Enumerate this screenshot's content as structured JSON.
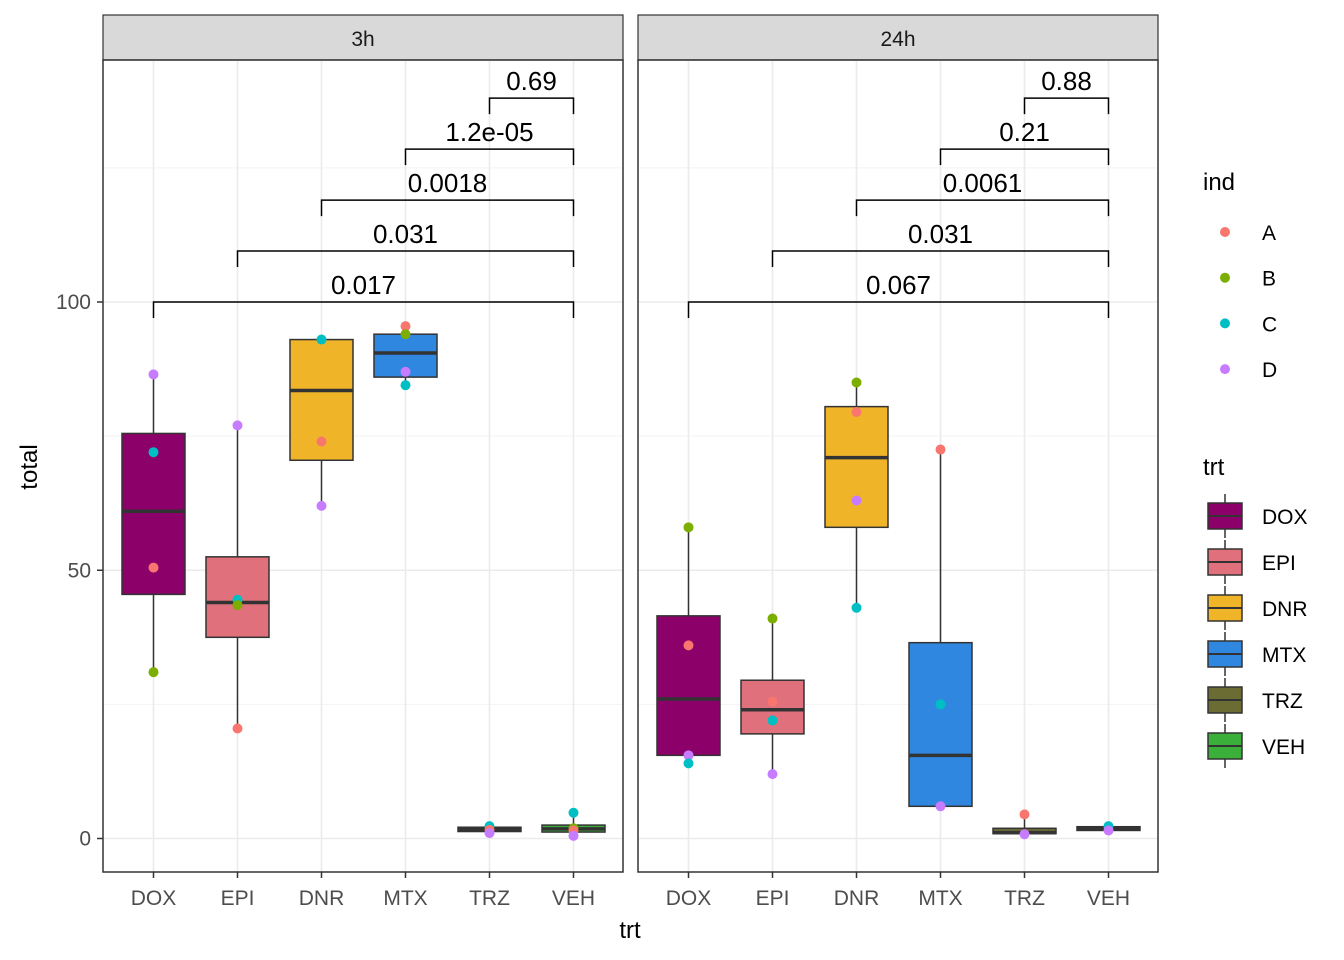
{
  "chart_data": {
    "type": "boxplot",
    "xlabel": "trt",
    "ylabel": "total",
    "ylim": [
      -6,
      145
    ],
    "yticks": [
      0,
      50,
      100
    ],
    "grid": true,
    "legend_position": "right",
    "categories": [
      "DOX",
      "EPI",
      "DNR",
      "MTX",
      "TRZ",
      "VEH"
    ],
    "colors": {
      "trt": {
        "DOX": "#8b0069",
        "EPI": "#e0707b",
        "DNR": "#f0b429",
        "MTX": "#2f87e0",
        "TRZ": "#6b6b34",
        "VEH": "#3aaf3a"
      },
      "ind": {
        "A": "#f8766d",
        "B": "#7cae00",
        "C": "#00bfc4",
        "D": "#c77cff"
      }
    },
    "legends": [
      {
        "title": "ind",
        "kind": "point",
        "items": [
          "A",
          "B",
          "C",
          "D"
        ]
      },
      {
        "title": "trt",
        "kind": "box",
        "items": [
          "DOX",
          "EPI",
          "DNR",
          "MTX",
          "TRZ",
          "VEH"
        ]
      }
    ],
    "panels": [
      {
        "label": "3h",
        "boxes": [
          {
            "trt": "DOX",
            "min": 31,
            "q1": 45.5,
            "median": 61,
            "q3": 75.5,
            "max": 86.5
          },
          {
            "trt": "EPI",
            "min": 20.5,
            "q1": 37.5,
            "median": 44,
            "q3": 52.5,
            "max": 77
          },
          {
            "trt": "DNR",
            "min": 62,
            "q1": 70.5,
            "median": 83.5,
            "q3": 93,
            "max": 93
          },
          {
            "trt": "MTX",
            "min": 84.5,
            "q1": 86,
            "median": 90.5,
            "q3": 94,
            "max": 95.5
          },
          {
            "trt": "TRZ",
            "min": 1,
            "q1": 1.3,
            "median": 1.7,
            "q3": 2.1,
            "max": 2.3
          },
          {
            "trt": "VEH",
            "min": 0.5,
            "q1": 1.2,
            "median": 1.8,
            "q3": 2.5,
            "max": 4.8
          }
        ],
        "points": [
          {
            "trt": "DOX",
            "ind": "D",
            "y": 86.5
          },
          {
            "trt": "DOX",
            "ind": "C",
            "y": 72
          },
          {
            "trt": "DOX",
            "ind": "A",
            "y": 50.5
          },
          {
            "trt": "DOX",
            "ind": "B",
            "y": 31
          },
          {
            "trt": "EPI",
            "ind": "D",
            "y": 77
          },
          {
            "trt": "EPI",
            "ind": "C",
            "y": 44.5
          },
          {
            "trt": "EPI",
            "ind": "B",
            "y": 43.5
          },
          {
            "trt": "EPI",
            "ind": "A",
            "y": 20.5
          },
          {
            "trt": "DNR",
            "ind": "C",
            "y": 93
          },
          {
            "trt": "DNR",
            "ind": "A",
            "y": 74
          },
          {
            "trt": "DNR",
            "ind": "D",
            "y": 62
          },
          {
            "trt": "MTX",
            "ind": "A",
            "y": 95.5
          },
          {
            "trt": "MTX",
            "ind": "B",
            "y": 94
          },
          {
            "trt": "MTX",
            "ind": "D",
            "y": 87
          },
          {
            "trt": "MTX",
            "ind": "C",
            "y": 84.5
          },
          {
            "trt": "TRZ",
            "ind": "C",
            "y": 2.3
          },
          {
            "trt": "TRZ",
            "ind": "A",
            "y": 1.6
          },
          {
            "trt": "TRZ",
            "ind": "D",
            "y": 1
          },
          {
            "trt": "VEH",
            "ind": "C",
            "y": 4.8
          },
          {
            "trt": "VEH",
            "ind": "B",
            "y": 1.9
          },
          {
            "trt": "VEH",
            "ind": "A",
            "y": 1.5
          },
          {
            "trt": "VEH",
            "ind": "D",
            "y": 0.5
          }
        ],
        "comparisons": [
          {
            "from": "DOX",
            "to": "VEH",
            "label": "0.017",
            "y": 100
          },
          {
            "from": "EPI",
            "to": "VEH",
            "label": "0.031",
            "y": 109.5
          },
          {
            "from": "DNR",
            "to": "VEH",
            "label": "0.0018",
            "y": 119
          },
          {
            "from": "MTX",
            "to": "VEH",
            "label": "1.2e-05",
            "y": 128.5
          },
          {
            "from": "TRZ",
            "to": "VEH",
            "label": "0.69",
            "y": 138
          }
        ]
      },
      {
        "label": "24h",
        "boxes": [
          {
            "trt": "DOX",
            "min": 14,
            "q1": 15.5,
            "median": 26,
            "q3": 41.5,
            "max": 58
          },
          {
            "trt": "EPI",
            "min": 12,
            "q1": 19.5,
            "median": 24,
            "q3": 29.5,
            "max": 41
          },
          {
            "trt": "DNR",
            "min": 43,
            "q1": 58,
            "median": 71,
            "q3": 80.5,
            "max": 85
          },
          {
            "trt": "MTX",
            "min": 6,
            "q1": 6,
            "median": 15.5,
            "q3": 36.5,
            "max": 72.5
          },
          {
            "trt": "TRZ",
            "min": 0.8,
            "q1": 0.9,
            "median": 1.1,
            "q3": 1.9,
            "max": 4.5
          },
          {
            "trt": "VEH",
            "min": 1.3,
            "q1": 1.5,
            "median": 1.9,
            "q3": 2.2,
            "max": 2.3
          }
        ],
        "points": [
          {
            "trt": "DOX",
            "ind": "B",
            "y": 58
          },
          {
            "trt": "DOX",
            "ind": "A",
            "y": 36
          },
          {
            "trt": "DOX",
            "ind": "D",
            "y": 15.5
          },
          {
            "trt": "DOX",
            "ind": "C",
            "y": 14
          },
          {
            "trt": "EPI",
            "ind": "B",
            "y": 41
          },
          {
            "trt": "EPI",
            "ind": "A",
            "y": 25.5
          },
          {
            "trt": "EPI",
            "ind": "C",
            "y": 22
          },
          {
            "trt": "EPI",
            "ind": "D",
            "y": 12
          },
          {
            "trt": "DNR",
            "ind": "B",
            "y": 85
          },
          {
            "trt": "DNR",
            "ind": "A",
            "y": 79.5
          },
          {
            "trt": "DNR",
            "ind": "D",
            "y": 63
          },
          {
            "trt": "DNR",
            "ind": "C",
            "y": 43
          },
          {
            "trt": "MTX",
            "ind": "A",
            "y": 72.5
          },
          {
            "trt": "MTX",
            "ind": "C",
            "y": 25
          },
          {
            "trt": "MTX",
            "ind": "D",
            "y": 6
          },
          {
            "trt": "TRZ",
            "ind": "A",
            "y": 4.5
          },
          {
            "trt": "TRZ",
            "ind": "D",
            "y": 0.8
          },
          {
            "trt": "VEH",
            "ind": "C",
            "y": 2.3
          },
          {
            "trt": "VEH",
            "ind": "D",
            "y": 1.5
          }
        ],
        "comparisons": [
          {
            "from": "DOX",
            "to": "VEH",
            "label": "0.067",
            "y": 100
          },
          {
            "from": "EPI",
            "to": "VEH",
            "label": "0.031",
            "y": 109.5
          },
          {
            "from": "DNR",
            "to": "VEH",
            "label": "0.0061",
            "y": 119
          },
          {
            "from": "MTX",
            "to": "VEH",
            "label": "0.21",
            "y": 128.5
          },
          {
            "from": "TRZ",
            "to": "VEH",
            "label": "0.88",
            "y": 138
          }
        ]
      }
    ]
  }
}
